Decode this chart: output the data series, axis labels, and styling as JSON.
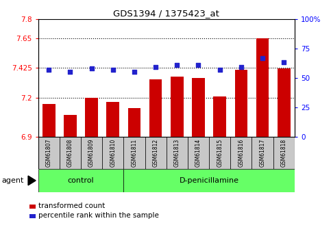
{
  "title": "GDS1394 / 1375423_at",
  "samples": [
    "GSM61807",
    "GSM61808",
    "GSM61809",
    "GSM61810",
    "GSM61811",
    "GSM61812",
    "GSM61813",
    "GSM61814",
    "GSM61815",
    "GSM61816",
    "GSM61817",
    "GSM61818"
  ],
  "bar_values": [
    7.15,
    7.07,
    7.2,
    7.165,
    7.12,
    7.34,
    7.36,
    7.35,
    7.21,
    7.41,
    7.65,
    7.42
  ],
  "dot_values": [
    57,
    55,
    58,
    57,
    55,
    59,
    61,
    61,
    57,
    59,
    67,
    63
  ],
  "ylim_left": [
    6.9,
    7.8
  ],
  "ylim_right": [
    0,
    100
  ],
  "yticks_left": [
    6.9,
    7.2,
    7.425,
    7.65,
    7.8
  ],
  "ytick_labels_left": [
    "6.9",
    "7.2",
    "7.425",
    "7.65",
    "7.8"
  ],
  "yticks_right": [
    0,
    25,
    50,
    75,
    100
  ],
  "ytick_labels_right": [
    "0",
    "25",
    "50",
    "75",
    "100%"
  ],
  "hlines": [
    7.2,
    7.425,
    7.65
  ],
  "bar_color": "#cc0000",
  "dot_color": "#2222cc",
  "control_label": "control",
  "treatment_label": "D-penicillamine",
  "agent_label": "agent",
  "legend_bar_label": "transformed count",
  "legend_dot_label": "percentile rank within the sample",
  "bar_width": 0.6,
  "xtick_bg": "#c8c8c8",
  "group_color": "#66ff66",
  "n_control": 4,
  "n_treatment": 8
}
